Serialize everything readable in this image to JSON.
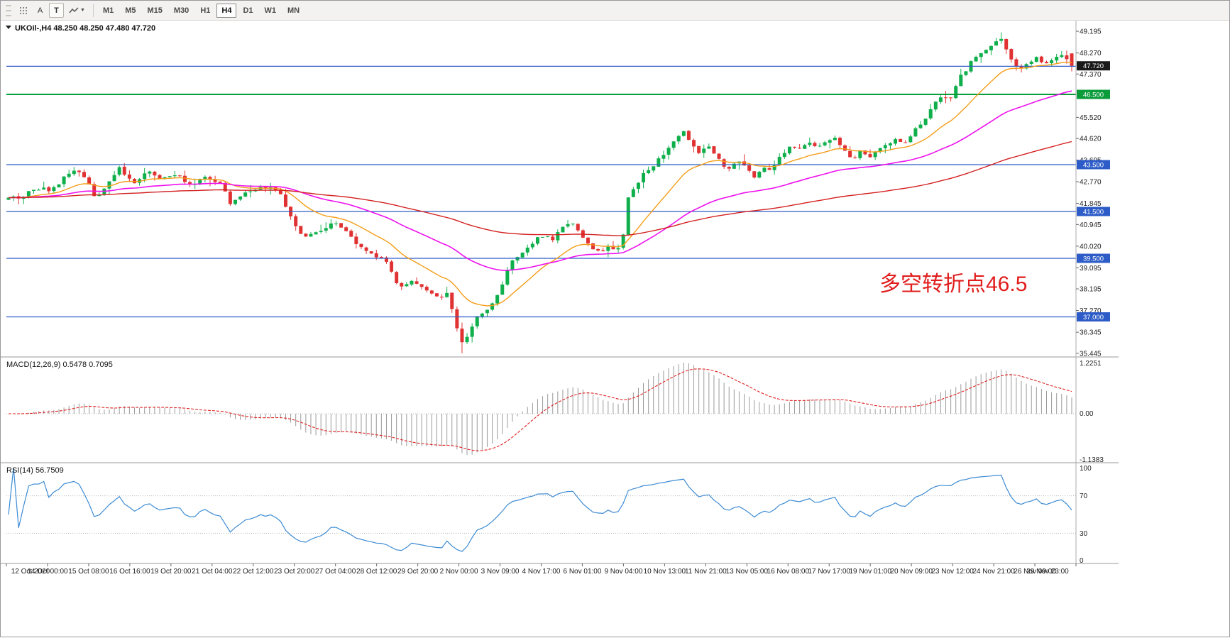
{
  "colors": {
    "candle_up": "#0faf4b",
    "candle_down": "#e03232",
    "ma_fast": "#f49d18",
    "ma_mid": "#ee11ee",
    "ma_slow": "#d42020",
    "level_blue": "#2d5cc8",
    "level_green": "#0a9b3a",
    "current_price_bg": "#1a1a1a",
    "macd_histogram": "#9a9a9a",
    "macd_signal": "#e02020",
    "rsi_line": "#3d8bd4",
    "annotation_red": "#e11d1d"
  },
  "toolbar": {
    "tool_a_label": "A",
    "tool_t_label": "T",
    "timeframes": [
      "M1",
      "M5",
      "M15",
      "M30",
      "H1",
      "H4",
      "D1",
      "W1",
      "MN"
    ],
    "active_timeframe": "H4"
  },
  "main_chart": {
    "title_line": "UKOil-,H4  48.250 48.250 47.480 47.720",
    "symbol": "UKOil-",
    "timeframe": "H4",
    "ohlc": {
      "open": "48.250",
      "high": "48.250",
      "low": "47.480",
      "close": "47.720"
    },
    "annotation_text": "多空转折点46.5",
    "current_price_label": "47.720",
    "level_labels": {
      "green": "46.500",
      "blue": [
        "43.500",
        "41.500",
        "39.500",
        "37.000"
      ]
    }
  },
  "macd_panel": {
    "label": "MACD(12,26,9) 0.5478 0.7095",
    "axis_labels": [
      "1.2251",
      "0.00",
      "-1.1383"
    ]
  },
  "rsi_panel": {
    "label": "RSI(14) 56.7509",
    "axis_labels": [
      "100",
      "70",
      "30",
      "0"
    ]
  },
  "chart_data": {
    "type": "candlestick",
    "symbol": "UKOil-",
    "timeframe": "H4",
    "bar_count": 212,
    "last_bar": {
      "open": 48.25,
      "high": 48.25,
      "low": 47.48,
      "close": 47.72
    },
    "low_extreme": 35.45,
    "high_extreme": 49.15,
    "levels": {
      "blue_lines": [
        47.7,
        43.5,
        41.5,
        39.5,
        37.0
      ],
      "green_line": 46.5
    },
    "y_axis": {
      "labels": [
        "49.195",
        "48.270",
        "47.370",
        "45.520",
        "44.620",
        "43.695",
        "42.770",
        "41.845",
        "40.945",
        "40.020",
        "39.095",
        "38.195",
        "37.270",
        "36.345",
        "35.445"
      ],
      "values": [
        49.195,
        48.27,
        47.37,
        45.52,
        44.62,
        43.695,
        42.77,
        41.845,
        40.945,
        40.02,
        39.095,
        38.195,
        37.27,
        36.345,
        35.445
      ]
    },
    "x_axis_labels": [
      "12 Oct 2020",
      "14 Oct 00:00",
      "15 Oct 08:00",
      "16 Oct 16:00",
      "19 Oct 20:00",
      "21 Oct 04:00",
      "22 Oct 12:00",
      "23 Oct 20:00",
      "27 Oct 04:00",
      "28 Oct 12:00",
      "29 Oct 20:00",
      "2 Nov 00:00",
      "3 Nov 09:00",
      "4 Nov 17:00",
      "6 Nov 01:00",
      "9 Nov 04:00",
      "10 Nov 13:00",
      "11 Nov 21:00",
      "13 Nov 05:00",
      "16 Nov 08:00",
      "17 Nov 17:00",
      "19 Nov 01:00",
      "20 Nov 09:00",
      "23 Nov 12:00",
      "24 Nov 21:00",
      "26 Nov 09:00",
      "29 Nov 23:00"
    ],
    "price_path": [
      [
        0,
        42.15
      ],
      [
        0.012,
        42
      ],
      [
        0.025,
        42.55
      ],
      [
        0.04,
        42.35
      ],
      [
        0.055,
        43.05
      ],
      [
        0.065,
        43.3
      ],
      [
        0.075,
        42.75
      ],
      [
        0.082,
        41.95
      ],
      [
        0.095,
        42.85
      ],
      [
        0.105,
        43.25
      ],
      [
        0.118,
        42.7
      ],
      [
        0.132,
        43.28
      ],
      [
        0.145,
        42.85
      ],
      [
        0.158,
        43.1
      ],
      [
        0.17,
        42.62
      ],
      [
        0.185,
        42.95
      ],
      [
        0.2,
        42.65
      ],
      [
        0.21,
        41.85
      ],
      [
        0.222,
        42.25
      ],
      [
        0.238,
        42.55
      ],
      [
        0.255,
        42.4
      ],
      [
        0.265,
        41.3
      ],
      [
        0.278,
        40.35
      ],
      [
        0.292,
        40.7
      ],
      [
        0.306,
        41
      ],
      [
        0.32,
        40.5
      ],
      [
        0.333,
        39.95
      ],
      [
        0.345,
        39.55
      ],
      [
        0.356,
        39.4
      ],
      [
        0.366,
        38.3
      ],
      [
        0.378,
        38.55
      ],
      [
        0.392,
        38.25
      ],
      [
        0.405,
        37.75
      ],
      [
        0.413,
        38
      ],
      [
        0.42,
        36.8
      ],
      [
        0.427,
        35.8
      ],
      [
        0.433,
        36.3
      ],
      [
        0.443,
        37.15
      ],
      [
        0.453,
        37.4
      ],
      [
        0.463,
        38.2
      ],
      [
        0.471,
        39.25
      ],
      [
        0.48,
        39.6
      ],
      [
        0.491,
        40.05
      ],
      [
        0.501,
        40.5
      ],
      [
        0.511,
        40.3
      ],
      [
        0.521,
        40.9
      ],
      [
        0.529,
        41.05
      ],
      [
        0.539,
        40.55
      ],
      [
        0.547,
        40
      ],
      [
        0.556,
        39.75
      ],
      [
        0.564,
        40.1
      ],
      [
        0.571,
        39.8
      ],
      [
        0.577,
        40.1
      ],
      [
        0.583,
        42.2
      ],
      [
        0.59,
        42.8
      ],
      [
        0.6,
        43.2
      ],
      [
        0.61,
        43.65
      ],
      [
        0.619,
        44.1
      ],
      [
        0.627,
        44.55
      ],
      [
        0.634,
        45.05
      ],
      [
        0.641,
        44.55
      ],
      [
        0.648,
        43.85
      ],
      [
        0.655,
        44.4
      ],
      [
        0.662,
        44.15
      ],
      [
        0.67,
        43.55
      ],
      [
        0.679,
        43.35
      ],
      [
        0.687,
        43.7
      ],
      [
        0.694,
        43.3
      ],
      [
        0.701,
        42.95
      ],
      [
        0.709,
        43.3
      ],
      [
        0.717,
        43.25
      ],
      [
        0.727,
        43.95
      ],
      [
        0.735,
        44.3
      ],
      [
        0.743,
        44.15
      ],
      [
        0.752,
        44.4
      ],
      [
        0.76,
        44.2
      ],
      [
        0.769,
        44.5
      ],
      [
        0.778,
        44.65
      ],
      [
        0.786,
        44.1
      ],
      [
        0.794,
        43.75
      ],
      [
        0.801,
        44.05
      ],
      [
        0.809,
        43.85
      ],
      [
        0.817,
        44.1
      ],
      [
        0.825,
        44.35
      ],
      [
        0.833,
        44.6
      ],
      [
        0.842,
        44.45
      ],
      [
        0.851,
        44.9
      ],
      [
        0.86,
        45.4
      ],
      [
        0.869,
        45.9
      ],
      [
        0.877,
        46.35
      ],
      [
        0.885,
        46.3
      ],
      [
        0.893,
        47.1
      ],
      [
        0.901,
        47.7
      ],
      [
        0.909,
        48.05
      ],
      [
        0.917,
        48.3
      ],
      [
        0.925,
        48.65
      ],
      [
        0.933,
        48.85
      ],
      [
        0.94,
        48.3
      ],
      [
        0.947,
        47.65
      ],
      [
        0.954,
        47.55
      ],
      [
        0.961,
        47.95
      ],
      [
        0.968,
        48.1
      ],
      [
        0.975,
        47.7
      ],
      [
        0.982,
        48
      ],
      [
        0.99,
        48.2
      ],
      [
        1,
        47.75
      ]
    ],
    "indicators": {
      "macd": {
        "fast": 12,
        "slow": 26,
        "signal": 9,
        "current_macd": 0.5478,
        "current_signal": 0.7095,
        "scale_max": 1.2251,
        "scale_min": -1.1383
      },
      "rsi": {
        "period": 14,
        "current": 56.7509,
        "levels": [
          70,
          30
        ]
      },
      "moving_averages": [
        {
          "name": "fast-ma",
          "period": 16,
          "color_key": "ma_fast"
        },
        {
          "name": "mid-ma",
          "period": 48,
          "color_key": "ma_mid"
        },
        {
          "name": "slow-ma",
          "period": 130,
          "color_key": "ma_slow"
        }
      ]
    }
  }
}
